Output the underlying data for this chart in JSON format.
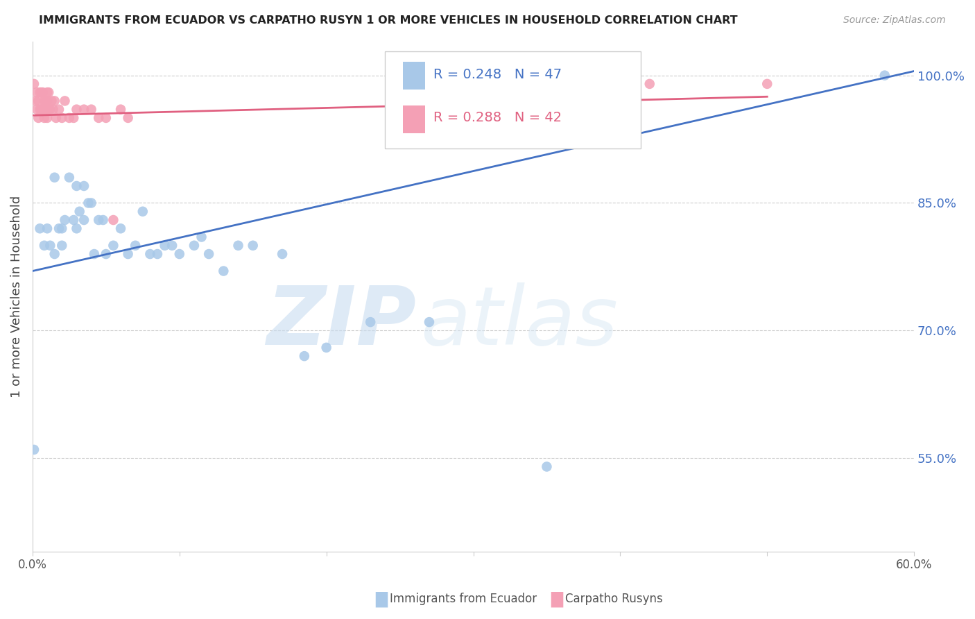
{
  "title": "IMMIGRANTS FROM ECUADOR VS CARPATHO RUSYN 1 OR MORE VEHICLES IN HOUSEHOLD CORRELATION CHART",
  "source": "Source: ZipAtlas.com",
  "ylabel": "1 or more Vehicles in Household",
  "xlim": [
    0.0,
    0.6
  ],
  "ylim": [
    0.44,
    1.04
  ],
  "xticks": [
    0.0,
    0.1,
    0.2,
    0.3,
    0.4,
    0.5,
    0.6
  ],
  "xticklabels": [
    "0.0%",
    "",
    "",
    "",
    "",
    "",
    "60.0%"
  ],
  "yticks_right": [
    0.55,
    0.7,
    0.85,
    1.0
  ],
  "ytick_labels_right": [
    "55.0%",
    "70.0%",
    "85.0%",
    "100.0%"
  ],
  "blue_R": 0.248,
  "blue_N": 47,
  "pink_R": 0.288,
  "pink_N": 42,
  "blue_color": "#A8C8E8",
  "pink_color": "#F4A0B5",
  "blue_line_color": "#4472C4",
  "pink_line_color": "#E06080",
  "legend_blue_label": "Immigrants from Ecuador",
  "legend_pink_label": "Carpatho Rusyns",
  "blue_scatter_x": [
    0.001,
    0.005,
    0.008,
    0.01,
    0.012,
    0.015,
    0.015,
    0.018,
    0.02,
    0.02,
    0.022,
    0.025,
    0.028,
    0.03,
    0.03,
    0.032,
    0.035,
    0.035,
    0.038,
    0.04,
    0.042,
    0.045,
    0.048,
    0.05,
    0.055,
    0.06,
    0.065,
    0.07,
    0.075,
    0.08,
    0.085,
    0.09,
    0.095,
    0.1,
    0.11,
    0.115,
    0.12,
    0.13,
    0.14,
    0.15,
    0.17,
    0.185,
    0.2,
    0.23,
    0.27,
    0.35,
    0.58
  ],
  "blue_scatter_y": [
    0.56,
    0.82,
    0.8,
    0.82,
    0.8,
    0.88,
    0.79,
    0.82,
    0.8,
    0.82,
    0.83,
    0.88,
    0.83,
    0.82,
    0.87,
    0.84,
    0.87,
    0.83,
    0.85,
    0.85,
    0.79,
    0.83,
    0.83,
    0.79,
    0.8,
    0.82,
    0.79,
    0.8,
    0.84,
    0.79,
    0.79,
    0.8,
    0.8,
    0.79,
    0.8,
    0.81,
    0.79,
    0.77,
    0.8,
    0.8,
    0.79,
    0.67,
    0.68,
    0.71,
    0.71,
    0.54,
    1.0
  ],
  "pink_scatter_x": [
    0.001,
    0.002,
    0.003,
    0.003,
    0.004,
    0.004,
    0.005,
    0.005,
    0.006,
    0.006,
    0.007,
    0.007,
    0.008,
    0.008,
    0.008,
    0.009,
    0.009,
    0.01,
    0.01,
    0.01,
    0.011,
    0.011,
    0.012,
    0.013,
    0.014,
    0.015,
    0.016,
    0.018,
    0.02,
    0.022,
    0.025,
    0.028,
    0.03,
    0.035,
    0.04,
    0.045,
    0.05,
    0.055,
    0.06,
    0.065,
    0.42,
    0.5
  ],
  "pink_scatter_y": [
    0.99,
    0.97,
    0.96,
    0.98,
    0.95,
    0.97,
    0.96,
    0.98,
    0.96,
    0.98,
    0.96,
    0.98,
    0.96,
    0.95,
    0.97,
    0.96,
    0.97,
    0.95,
    0.97,
    0.98,
    0.96,
    0.98,
    0.96,
    0.97,
    0.96,
    0.97,
    0.95,
    0.96,
    0.95,
    0.97,
    0.95,
    0.95,
    0.96,
    0.96,
    0.96,
    0.95,
    0.95,
    0.83,
    0.96,
    0.95,
    0.99,
    0.99
  ],
  "blue_line_x": [
    0.0,
    0.6
  ],
  "blue_line_y": [
    0.77,
    1.005
  ],
  "pink_line_x": [
    0.0,
    0.5
  ],
  "pink_line_y": [
    0.953,
    0.975
  ],
  "watermark_zip": "ZIP",
  "watermark_atlas": "atlas",
  "background_color": "#FFFFFF",
  "grid_color": "#CCCCCC"
}
